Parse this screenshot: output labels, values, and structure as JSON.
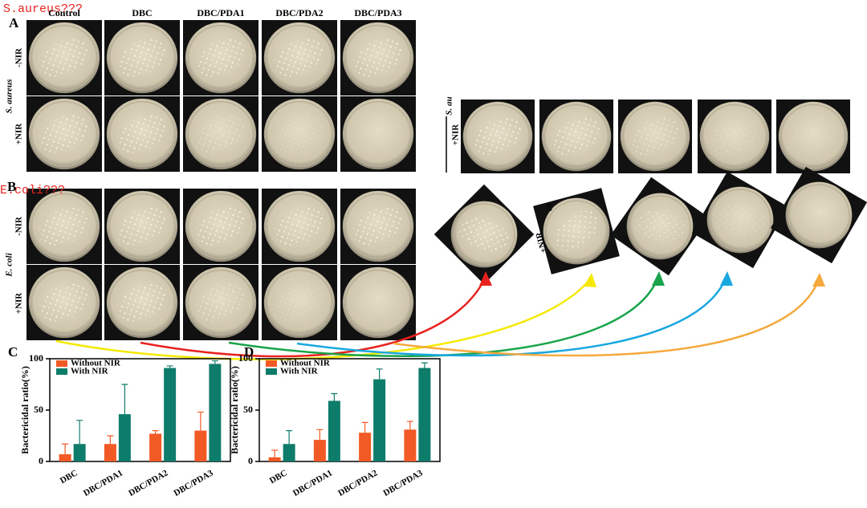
{
  "annotations": {
    "s_aureus_note": "S.aureus???",
    "e_coli_note": "E.coli???"
  },
  "panel_a": {
    "label": "A",
    "columns": [
      "Control",
      "DBC",
      "DBC/PDA1",
      "DBC/PDA2",
      "DBC/PDA3"
    ],
    "rows": [
      "-NIR",
      "+NIR"
    ],
    "organism": "S. aureus"
  },
  "panel_b": {
    "label": "B",
    "rows": [
      "-NIR",
      "+NIR"
    ],
    "organism": "E. coli"
  },
  "right_panel": {
    "organism_cropped": "S. au",
    "row": "+NIR",
    "cropped_label": "co",
    "row_rotated": "+NIR"
  },
  "chart_data": [
    {
      "type": "bar",
      "panel_label": "C",
      "ylabel": "Bactericidal ratio(%)",
      "categories": [
        "DBC",
        "DBC/PDA1",
        "DBC/PDA2",
        "DBC/PDA3"
      ],
      "series": [
        {
          "name": "Without NIR",
          "color": "#f15a24",
          "values": [
            7,
            17,
            27,
            30
          ],
          "errors": [
            10,
            8,
            3,
            18
          ]
        },
        {
          "name": "With NIR",
          "color": "#0e7c6b",
          "values": [
            17,
            46,
            91,
            95
          ],
          "errors": [
            23,
            29,
            2,
            3
          ]
        }
      ],
      "ylim": [
        0,
        100
      ],
      "yticks": [
        0,
        50,
        100
      ],
      "legend": "upper left"
    },
    {
      "type": "bar",
      "panel_label": "D",
      "ylabel": "Bactericidal ratio(%)",
      "categories": [
        "DBC",
        "DBC/PDA1",
        "DBC/PDA2",
        "DBC/PDA3"
      ],
      "series": [
        {
          "name": "Without NIR",
          "color": "#f15a24",
          "values": [
            4,
            21,
            28,
            31
          ],
          "errors": [
            7,
            10,
            10,
            8
          ]
        },
        {
          "name": "With NIR",
          "color": "#0e7c6b",
          "values": [
            17,
            59,
            80,
            91
          ],
          "errors": [
            13,
            7,
            10,
            5
          ]
        }
      ],
      "ylim": [
        0,
        100
      ],
      "yticks": [
        0,
        50,
        100
      ],
      "legend": "upper left"
    }
  ]
}
